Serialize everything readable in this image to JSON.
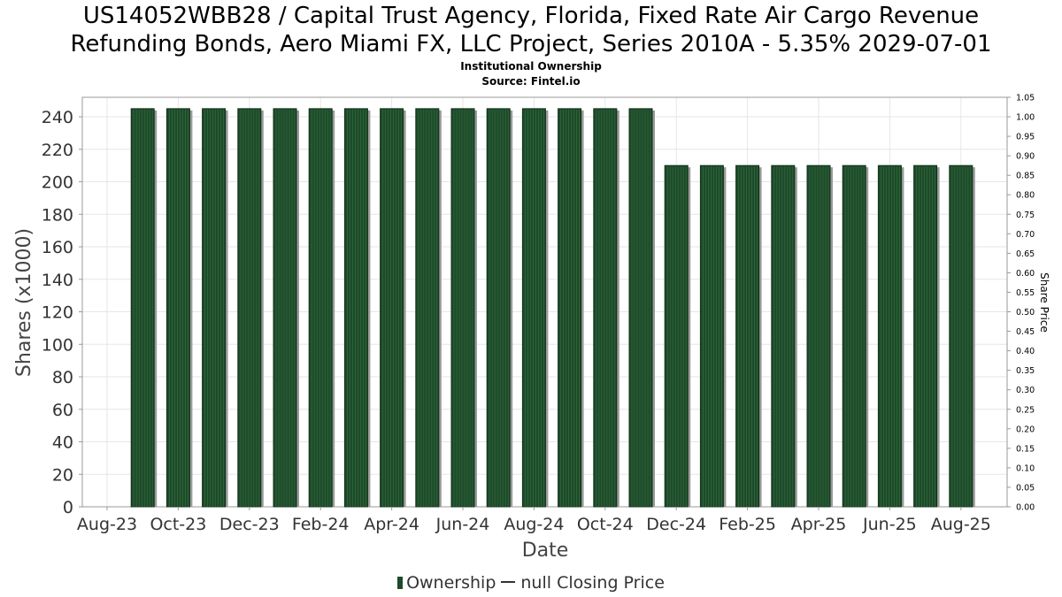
{
  "title_line1": "US14052WBB28 / Capital Trust Agency, Florida, Fixed Rate Air Cargo Revenue",
  "title_line2": "Refunding Bonds, Aero Miami FX, LLC Project, Series 2010A - 5.35% 2029-07-01",
  "subtitle1": "Institutional Ownership",
  "subtitle2": "Source: Fintel.io",
  "legend": {
    "ownership": "Ownership",
    "price": "null Closing Price"
  },
  "colors": {
    "bar": "#1e4a2a",
    "bar_shadow": "#9a9a9a",
    "grid": "#e6e6e6"
  },
  "chart_data": {
    "type": "bar",
    "xlabel": "Date",
    "ylabel": "Shares (x1000)",
    "y2label": "Share Price",
    "ylim": [
      0,
      252
    ],
    "y2lim": [
      0,
      1.05
    ],
    "yticks": [
      0,
      20,
      40,
      60,
      80,
      100,
      120,
      140,
      160,
      180,
      200,
      220,
      240
    ],
    "y2ticks": [
      "0.00",
      "0.05",
      "0.10",
      "0.15",
      "0.20",
      "0.25",
      "0.30",
      "0.35",
      "0.40",
      "0.45",
      "0.50",
      "0.55",
      "0.60",
      "0.65",
      "0.70",
      "0.75",
      "0.80",
      "0.85",
      "0.90",
      "0.95",
      "1.00",
      "1.05"
    ],
    "xticks": [
      "Aug-23",
      "Oct-23",
      "Dec-23",
      "Feb-24",
      "Apr-24",
      "Jun-24",
      "Aug-24",
      "Oct-24",
      "Dec-24",
      "Feb-25",
      "Apr-25",
      "Jun-25",
      "Aug-25"
    ],
    "grid": true,
    "legend_position": "bottom",
    "series": [
      {
        "name": "Ownership",
        "months": [
          "2023-09",
          "2023-10",
          "2023-11",
          "2023-12",
          "2024-01",
          "2024-02",
          "2024-03",
          "2024-04",
          "2024-05",
          "2024-06",
          "2024-07",
          "2024-08",
          "2024-09",
          "2024-10",
          "2024-11",
          "2024-12",
          "2025-01",
          "2025-02",
          "2025-03",
          "2025-04",
          "2025-05",
          "2025-06",
          "2025-07",
          "2025-08"
        ],
        "values": [
          245,
          245,
          245,
          245,
          245,
          245,
          245,
          245,
          245,
          245,
          245,
          245,
          245,
          245,
          245,
          210,
          210,
          210,
          210,
          210,
          210,
          210,
          210,
          210
        ]
      },
      {
        "name": "null Closing Price",
        "values": []
      }
    ]
  }
}
